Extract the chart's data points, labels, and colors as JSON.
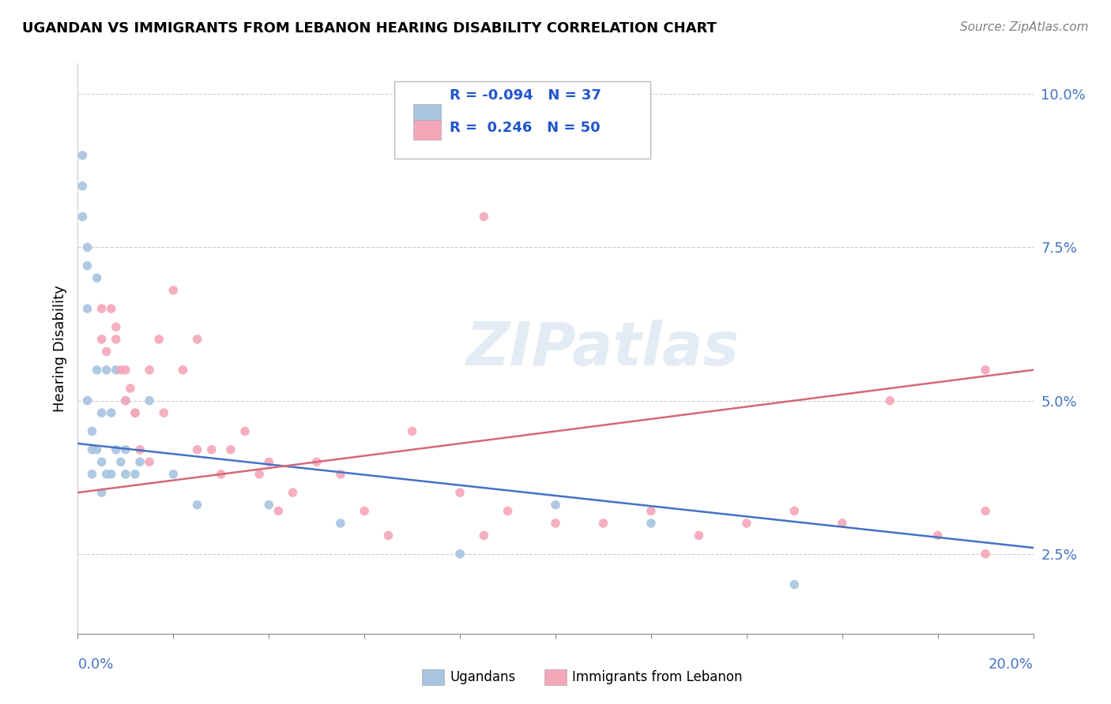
{
  "title": "UGANDAN VS IMMIGRANTS FROM LEBANON HEARING DISABILITY CORRELATION CHART",
  "source": "Source: ZipAtlas.com",
  "ylabel": "Hearing Disability",
  "watermark": "ZIPatlas",
  "ugandan_color": "#a8c4e0",
  "lebanon_color": "#f4a7b9",
  "ugandan_line_color": "#4472c4",
  "lebanon_line_color": "#d4687a",
  "xlim": [
    0.0,
    0.2
  ],
  "ylim": [
    0.012,
    0.105
  ],
  "yticks": [
    0.025,
    0.05,
    0.075,
    0.1
  ],
  "ytick_labels": [
    "2.5%",
    "5.0%",
    "7.5%",
    "10.0%"
  ],
  "ugandan_x": [
    0.001,
    0.001,
    0.001,
    0.002,
    0.002,
    0.002,
    0.002,
    0.003,
    0.003,
    0.003,
    0.004,
    0.004,
    0.004,
    0.005,
    0.005,
    0.005,
    0.006,
    0.006,
    0.007,
    0.007,
    0.008,
    0.008,
    0.009,
    0.01,
    0.01,
    0.01,
    0.012,
    0.013,
    0.015,
    0.02,
    0.025,
    0.04,
    0.055,
    0.08,
    0.1,
    0.12,
    0.15
  ],
  "ugandan_y": [
    0.09,
    0.085,
    0.08,
    0.075,
    0.072,
    0.065,
    0.05,
    0.045,
    0.042,
    0.038,
    0.07,
    0.055,
    0.042,
    0.048,
    0.04,
    0.035,
    0.055,
    0.038,
    0.048,
    0.038,
    0.055,
    0.042,
    0.04,
    0.05,
    0.042,
    0.038,
    0.038,
    0.04,
    0.05,
    0.038,
    0.033,
    0.033,
    0.03,
    0.025,
    0.033,
    0.03,
    0.02
  ],
  "lebanon_x": [
    0.005,
    0.006,
    0.007,
    0.008,
    0.009,
    0.01,
    0.011,
    0.012,
    0.013,
    0.015,
    0.017,
    0.018,
    0.02,
    0.022,
    0.025,
    0.028,
    0.03,
    0.032,
    0.035,
    0.038,
    0.04,
    0.042,
    0.045,
    0.05,
    0.055,
    0.06,
    0.065,
    0.07,
    0.08,
    0.085,
    0.09,
    0.1,
    0.11,
    0.12,
    0.13,
    0.14,
    0.15,
    0.16,
    0.17,
    0.18,
    0.19,
    0.19,
    0.005,
    0.008,
    0.01,
    0.012,
    0.015,
    0.025,
    0.085,
    0.19
  ],
  "lebanon_y": [
    0.06,
    0.058,
    0.065,
    0.06,
    0.055,
    0.05,
    0.052,
    0.048,
    0.042,
    0.055,
    0.06,
    0.048,
    0.068,
    0.055,
    0.042,
    0.042,
    0.038,
    0.042,
    0.045,
    0.038,
    0.04,
    0.032,
    0.035,
    0.04,
    0.038,
    0.032,
    0.028,
    0.045,
    0.035,
    0.08,
    0.032,
    0.03,
    0.03,
    0.032,
    0.028,
    0.03,
    0.032,
    0.03,
    0.05,
    0.028,
    0.025,
    0.032,
    0.065,
    0.062,
    0.055,
    0.048,
    0.04,
    0.06,
    0.028,
    0.055
  ],
  "ugandan_line_x": [
    0.0,
    0.2
  ],
  "ugandan_line_y": [
    0.043,
    0.026
  ],
  "lebanon_line_x": [
    0.0,
    0.2
  ],
  "lebanon_line_y": [
    0.035,
    0.055
  ],
  "background_color": "#ffffff",
  "grid_color": "#cccccc",
  "marker_size": 70
}
